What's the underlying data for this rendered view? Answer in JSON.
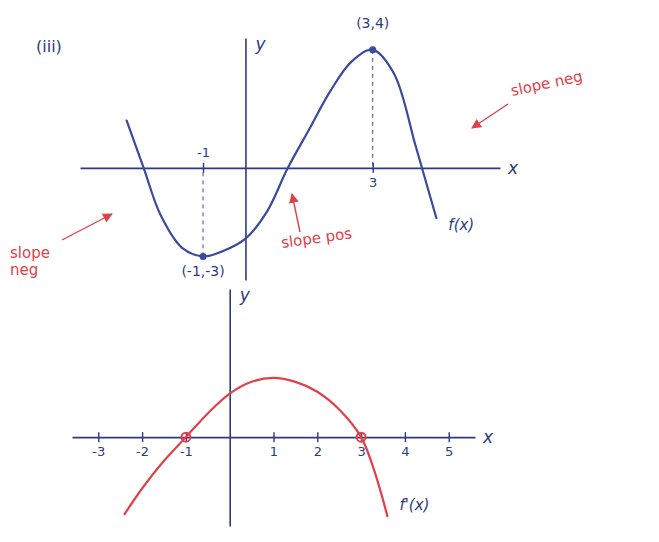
{
  "chart_data": [
    {
      "type": "line",
      "title": "(iii)",
      "xlabel": "x",
      "ylabel": "y",
      "x": [
        -2.8,
        -2.4,
        -2,
        -1.5,
        -1,
        -0.5,
        0,
        0.5,
        1,
        1.5,
        2,
        2.5,
        3,
        3.5,
        4,
        4.2,
        4.5
      ],
      "values": [
        1.6,
        0,
        -1.6,
        -2.7,
        -3,
        -2.8,
        -2.4,
        -1.5,
        0,
        1.3,
        2.6,
        3.6,
        4,
        3.2,
        0.8,
        -0.2,
        -1.7
      ],
      "color": "#3a4a9e",
      "xlim": [
        -3.9,
        6.0
      ],
      "ylim": [
        -3.8,
        4.4
      ],
      "xticks": [
        -1,
        3
      ],
      "tick_labels": "x",
      "curve_label": "f(x)",
      "marker": "dot",
      "points": [
        {
          "x": -1,
          "y": -3,
          "label": "(-1,-3)",
          "color": "#3a4a9e"
        },
        {
          "x": 3,
          "y": 4,
          "label": "(3,4)",
          "color": "#3a4a9e"
        }
      ],
      "annotations": [
        {
          "text": "slope neg",
          "color": "#e0404a"
        },
        {
          "text": "slope pos",
          "color": "#e0404a"
        },
        {
          "text": "slope neg",
          "color": "#e0404a"
        }
      ]
    },
    {
      "type": "line",
      "xlabel": "x",
      "ylabel": "y",
      "x": [
        -2.4,
        -2,
        -1.5,
        -1,
        -0.5,
        0,
        0.5,
        1,
        1.5,
        2,
        2.5,
        3,
        3.3,
        3.6
      ],
      "values": [
        -3.9,
        -2.6,
        -1.2,
        0,
        1.2,
        2.2,
        2.8,
        3,
        2.8,
        2.3,
        1.4,
        0,
        -1.7,
        -4
      ],
      "color": "#e0404a",
      "xlim": [
        -3.6,
        5.6
      ],
      "ylim": [
        -4.5,
        7.5
      ],
      "xticks": [
        -3,
        -2,
        -1,
        1,
        2,
        3,
        4,
        5
      ],
      "tick_labels": "x",
      "curve_label": "f'(x)",
      "marker": "ring",
      "points": [
        {
          "x": -1,
          "y": 0,
          "color": "#e0404a"
        },
        {
          "x": 3,
          "y": 0,
          "color": "#e0404a"
        }
      ]
    }
  ]
}
